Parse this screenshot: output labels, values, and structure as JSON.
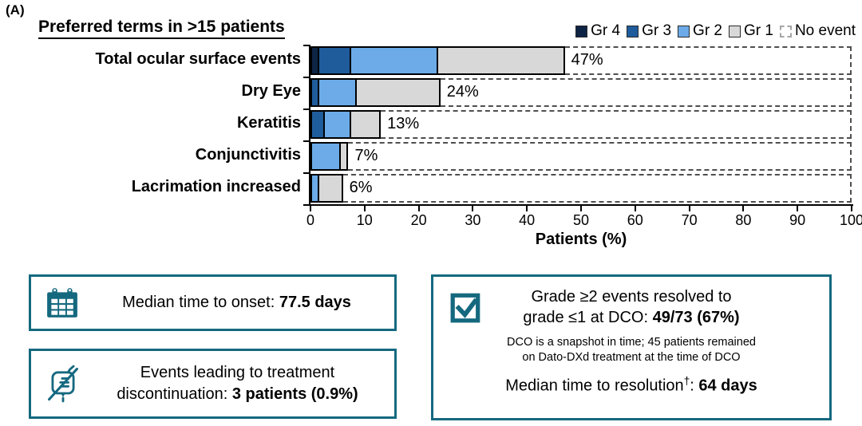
{
  "panel_label": "(A)",
  "colors": {
    "gr4": "#0e2444",
    "gr3": "#1f5c9c",
    "gr2": "#6cabe8",
    "gr1": "#d8d8d8",
    "teal": "#15697f"
  },
  "chart_data": {
    "type": "bar",
    "subtype": "horizontal-stacked",
    "title": "Preferred terms in >15 patients",
    "xlabel": "Patients (%)",
    "xlim": [
      0,
      100
    ],
    "xticks": [
      "0",
      "10",
      "20",
      "30",
      "40",
      "50",
      "60",
      "70",
      "80",
      "90",
      "100"
    ],
    "legend": [
      {
        "label": "Gr 4",
        "color_key": "gr4",
        "style": "solid"
      },
      {
        "label": "Gr 3",
        "color_key": "gr3",
        "style": "solid"
      },
      {
        "label": "Gr 2",
        "color_key": "gr2",
        "style": "solid"
      },
      {
        "label": "Gr 1",
        "color_key": "gr1",
        "style": "solid"
      },
      {
        "label": "No event",
        "color_key": "none",
        "style": "dashed"
      }
    ],
    "categories": [
      "Total ocular surface events",
      "Dry Eye",
      "Keratitis",
      "Conjunctivitis",
      "Lacrimation increased"
    ],
    "series": [
      {
        "name": "Gr 4",
        "color_key": "gr4",
        "values": [
          1,
          0,
          0,
          0,
          0
        ]
      },
      {
        "name": "Gr 3",
        "color_key": "gr3",
        "values": [
          6,
          1,
          2,
          0,
          0
        ]
      },
      {
        "name": "Gr 2",
        "color_key": "gr2",
        "values": [
          16,
          7,
          5,
          5,
          1
        ]
      },
      {
        "name": "Gr 1",
        "color_key": "gr1",
        "values": [
          24,
          16,
          6,
          2,
          5
        ]
      }
    ],
    "totals": [
      47,
      24,
      13,
      7,
      6
    ],
    "bar_labels": [
      "47%",
      "24%",
      "13%",
      "7%",
      "6%"
    ],
    "no_event_extends_to": 100
  },
  "info_boxes": {
    "onset": {
      "icon": "calendar-icon",
      "prefix": "Median time to onset: ",
      "value": "77.5 days"
    },
    "discontinuation": {
      "icon": "iv-bag-crossed-icon",
      "line1": "Events leading to treatment",
      "line2_prefix": "discontinuation: ",
      "value": "3 patients (0.9%)"
    },
    "resolution": {
      "icon": "checkbox-icon",
      "line1": "Grade ≥2 events resolved to",
      "line2_prefix": "grade ≤1 at DCO: ",
      "line2_value": "49/73 (67%)",
      "note1": "DCO is a snapshot in time; 45 patients remained",
      "note2": "on Dato-DXd treatment at the time of DCO",
      "line3_prefix": "Median time to resolution",
      "line3_sup": "†",
      "line3_colon": ": ",
      "line3_value": "64 days"
    }
  }
}
